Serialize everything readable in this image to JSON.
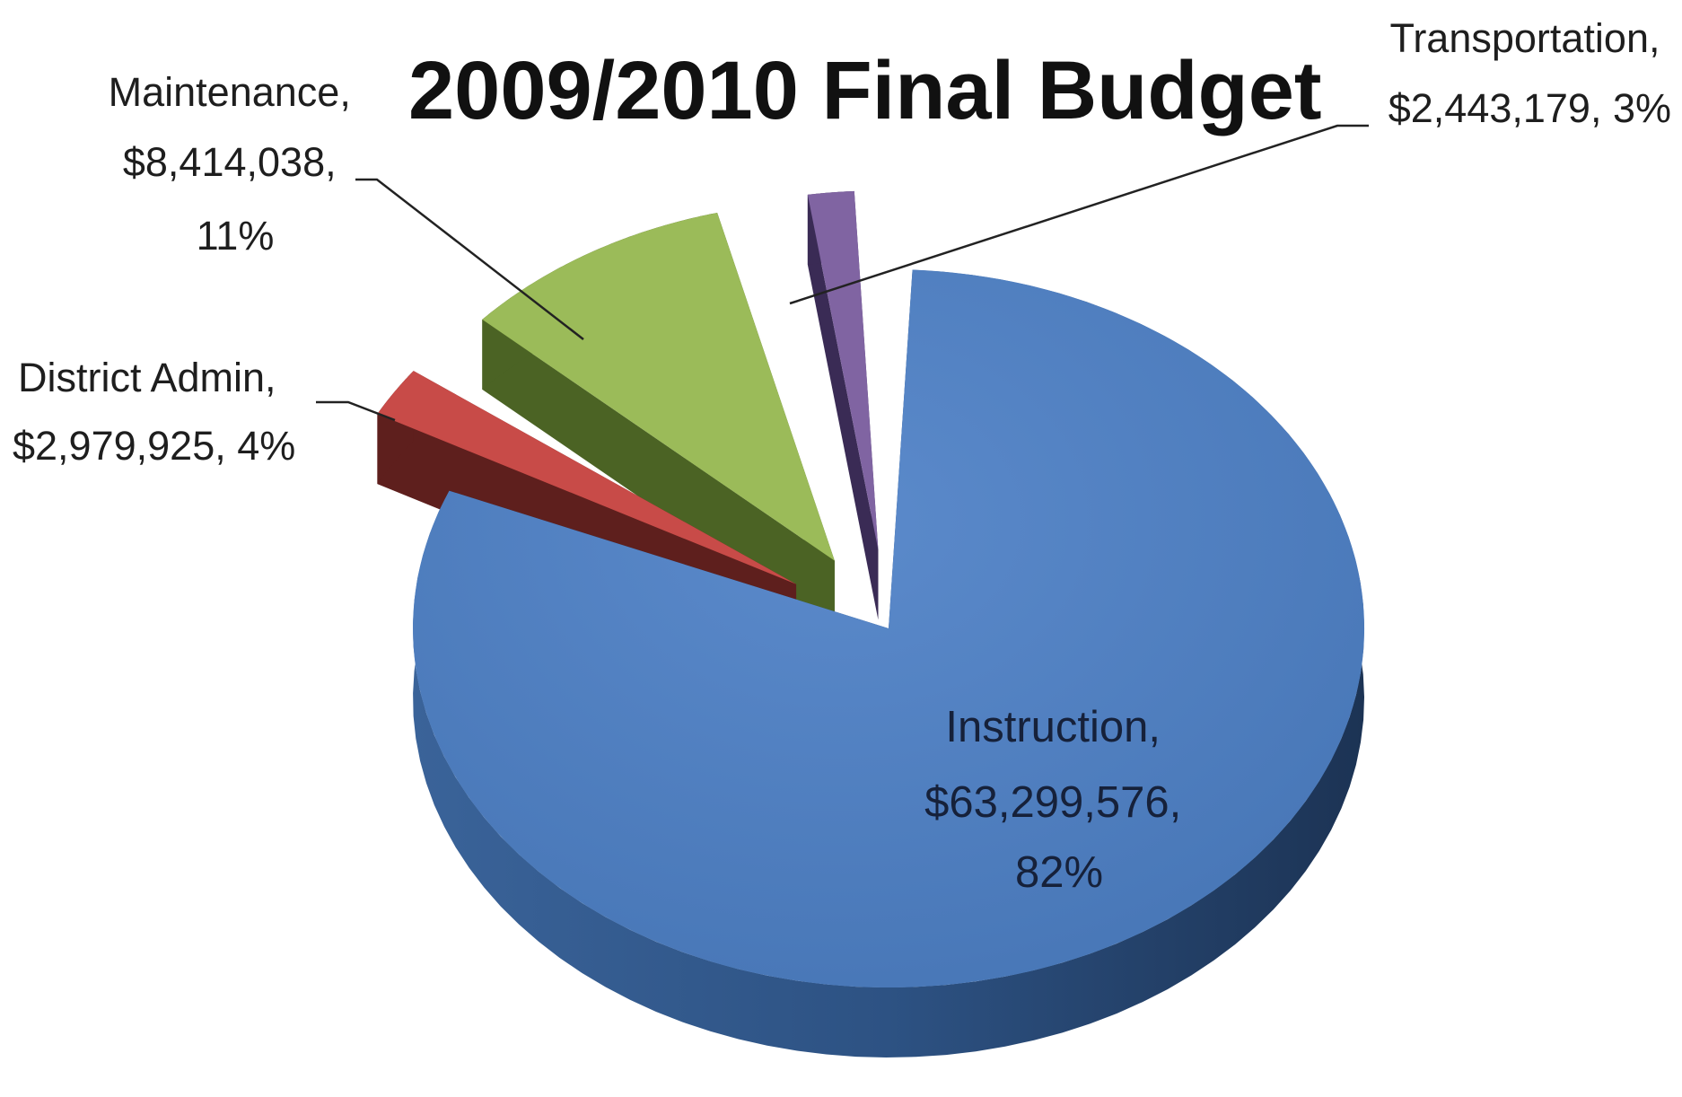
{
  "chart_data": {
    "type": "pie",
    "title": "2009/2010 Final Budget",
    "currency": "$",
    "slices": [
      {
        "name": "Instruction",
        "value": 63299576,
        "value_label": "$63,299,576",
        "percent_label": "82%",
        "color": "#4f7fbf",
        "side_color": "#284a75",
        "exploded": true
      },
      {
        "name": "District Admin",
        "value": 2979925,
        "value_label": "$2,979,925",
        "percent_label": "4%",
        "color": "#c84b48",
        "side_color": "#5e1f1d",
        "exploded": true
      },
      {
        "name": "Maintenance",
        "value": 8414038,
        "value_label": "$8,414,038",
        "percent_label": "11%",
        "color": "#9bbb59",
        "side_color": "#4b6324",
        "exploded": true
      },
      {
        "name": "Transportation",
        "value": 2443179,
        "value_label": "$2,443,179",
        "percent_label": "3%",
        "color": "#8064a2",
        "side_color": "#3a2b55",
        "exploded": true
      }
    ]
  },
  "labels": {
    "instruction": [
      "Instruction,",
      "$63,299,576,",
      "82%"
    ],
    "district_admin": [
      "District Admin,",
      "$2,979,925, 4%"
    ],
    "maintenance": [
      "Maintenance,",
      "$8,414,038,",
      "11%"
    ],
    "transportation": [
      "Transportation,",
      "$2,443,179, 3%"
    ]
  }
}
